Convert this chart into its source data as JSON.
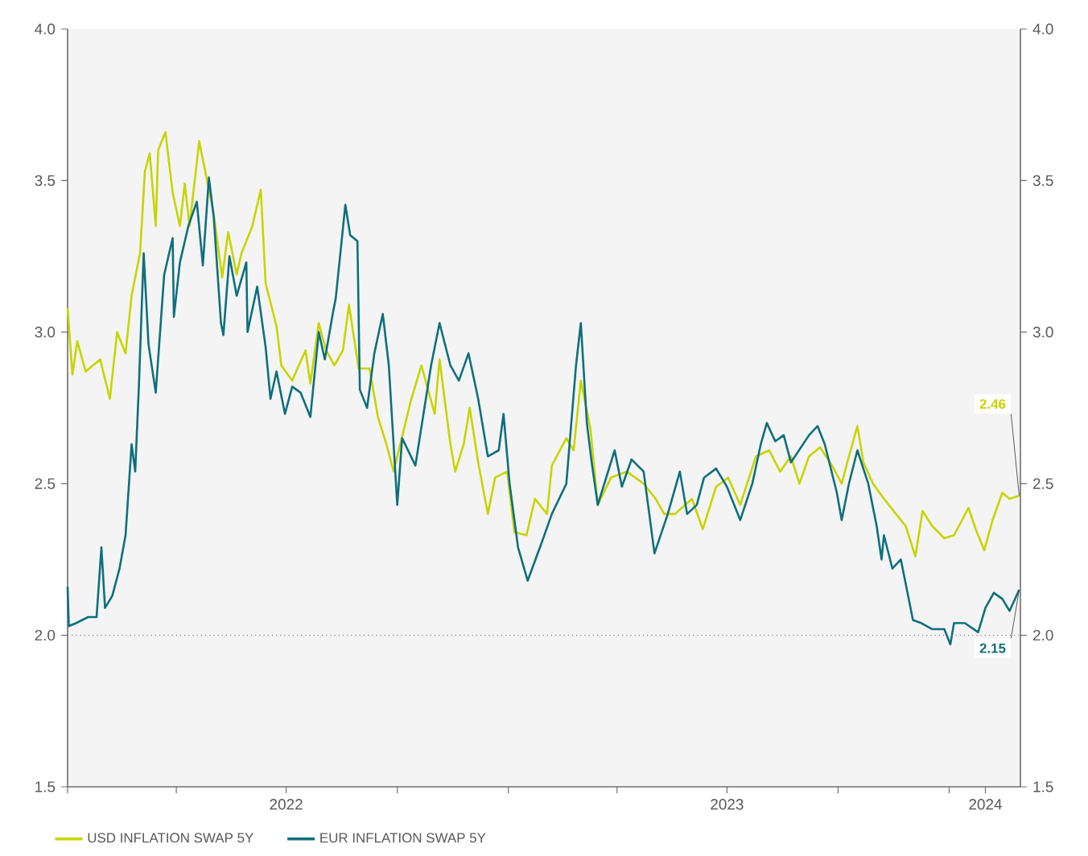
{
  "chart_data": {
    "type": "line",
    "xlim": [
      "2022-01-01",
      "2024-02-29"
    ],
    "xticks": [
      {
        "value": "2022-01-01",
        "label": null
      },
      {
        "value": "2022-04-01",
        "label": null
      },
      {
        "value": "2022-07-01",
        "label": "2022"
      },
      {
        "value": "2022-10-01",
        "label": null
      },
      {
        "value": "2023-01-01",
        "label": null
      },
      {
        "value": "2023-04-01",
        "label": null
      },
      {
        "value": "2023-07-01",
        "label": "2023"
      },
      {
        "value": "2023-10-01",
        "label": null
      },
      {
        "value": "2024-01-01",
        "label": null
      },
      {
        "value": "2024-01-31",
        "label": "2024"
      }
    ],
    "ylim": [
      1.5,
      4.0
    ],
    "yticks": [
      1.5,
      {
        "value": 2.0,
        "label": "2.0"
      },
      2.5,
      {
        "value": 3.0,
        "label": "3.0"
      },
      3.5,
      {
        "value": 4.0,
        "label": "4.0"
      }
    ],
    "y2lim": [
      1.5,
      4.0
    ],
    "y2ticks": [
      1.5,
      {
        "value": 2.0,
        "label": "2.0"
      },
      2.5,
      {
        "value": 3.0,
        "label": "3.0"
      },
      3.5,
      {
        "value": 4.0,
        "label": "4.0"
      }
    ],
    "legend": "bottom",
    "ref_lines": [
      {
        "axis": "y",
        "value": 2.0,
        "line_style": "dotted",
        "color": "#808080"
      }
    ],
    "annotations": [
      {
        "text": "2.46",
        "x": "2024-02-28",
        "y": 2.46
      },
      {
        "text": "2.15",
        "x": "2024-02-28",
        "y": 2.15
      }
    ],
    "series": [
      {
        "name": "USD INFLATION SWAP 5Y",
        "color": "#c8d400",
        "x": [
          "2022-01-01",
          "2022-01-05",
          "2022-01-09",
          "2022-01-16",
          "2022-01-28",
          "2022-02-05",
          "2022-02-11",
          "2022-02-18",
          "2022-02-23",
          "2022-03-02",
          "2022-03-06",
          "2022-03-10",
          "2022-03-15",
          "2022-03-17",
          "2022-03-23",
          "2022-03-29",
          "2022-04-04",
          "2022-04-08",
          "2022-04-12",
          "2022-04-20",
          "2022-04-26",
          "2022-05-02",
          "2022-05-09",
          "2022-05-14",
          "2022-05-21",
          "2022-05-25",
          "2022-06-03",
          "2022-06-10",
          "2022-06-14",
          "2022-06-23",
          "2022-06-27",
          "2022-07-06",
          "2022-07-17",
          "2022-07-21",
          "2022-07-28",
          "2022-08-03",
          "2022-08-10",
          "2022-08-17",
          "2022-08-22",
          "2022-08-30",
          "2022-09-08",
          "2022-09-15",
          "2022-09-22",
          "2022-09-28",
          "2022-10-12",
          "2022-10-21",
          "2022-11-01",
          "2022-11-05",
          "2022-11-14",
          "2022-11-18",
          "2022-11-25",
          "2022-11-30",
          "2022-12-07",
          "2022-12-15",
          "2022-12-21",
          "2022-12-31",
          "2023-01-06",
          "2023-01-16",
          "2023-01-23",
          "2023-02-02",
          "2023-02-06",
          "2023-02-18",
          "2023-02-24",
          "2023-03-02",
          "2023-03-10",
          "2023-03-16",
          "2023-03-27",
          "2023-04-09",
          "2023-04-23",
          "2023-05-03",
          "2023-05-10",
          "2023-05-19",
          "2023-06-02",
          "2023-06-11",
          "2023-06-22",
          "2023-07-02",
          "2023-07-12",
          "2023-07-25",
          "2023-08-05",
          "2023-08-14",
          "2023-08-23",
          "2023-08-30",
          "2023-09-07",
          "2023-09-16",
          "2023-09-26",
          "2023-10-04",
          "2023-10-10",
          "2023-10-17",
          "2023-10-22",
          "2023-10-30",
          "2023-11-08",
          "2023-11-18",
          "2023-11-26",
          "2023-12-04",
          "2023-12-10",
          "2023-12-18",
          "2023-12-28",
          "2024-01-05",
          "2024-01-17",
          "2024-01-23",
          "2024-01-30",
          "2024-02-06",
          "2024-02-14",
          "2024-02-20",
          "2024-02-28"
        ],
        "values": [
          3.08,
          2.86,
          2.97,
          2.87,
          2.91,
          2.78,
          3.0,
          2.93,
          3.12,
          3.26,
          3.53,
          3.59,
          3.35,
          3.6,
          3.66,
          3.46,
          3.35,
          3.49,
          3.35,
          3.63,
          3.51,
          3.39,
          3.18,
          3.33,
          3.19,
          3.26,
          3.35,
          3.47,
          3.16,
          3.02,
          2.89,
          2.84,
          2.94,
          2.83,
          3.03,
          2.94,
          2.89,
          2.94,
          3.09,
          2.88,
          2.88,
          2.72,
          2.63,
          2.54,
          2.77,
          2.89,
          2.73,
          2.91,
          2.63,
          2.54,
          2.63,
          2.75,
          2.57,
          2.4,
          2.52,
          2.54,
          2.34,
          2.33,
          2.45,
          2.4,
          2.56,
          2.65,
          2.61,
          2.84,
          2.68,
          2.43,
          2.52,
          2.54,
          2.5,
          2.45,
          2.4,
          2.4,
          2.45,
          2.35,
          2.49,
          2.52,
          2.43,
          2.59,
          2.61,
          2.54,
          2.59,
          2.5,
          2.59,
          2.62,
          2.56,
          2.5,
          2.59,
          2.69,
          2.57,
          2.5,
          2.45,
          2.4,
          2.36,
          2.26,
          2.41,
          2.36,
          2.32,
          2.33,
          2.42,
          2.35,
          2.28,
          2.38,
          2.47,
          2.45,
          2.46
        ]
      },
      {
        "name": "EUR INFLATION SWAP 5Y",
        "color": "#0e6f7e",
        "x": [
          "2022-01-01",
          "2022-01-02",
          "2022-01-08",
          "2022-01-18",
          "2022-01-25",
          "2022-01-29",
          "2022-02-01",
          "2022-02-07",
          "2022-02-13",
          "2022-02-18",
          "2022-02-23",
          "2022-02-26",
          "2022-03-01",
          "2022-03-05",
          "2022-03-09",
          "2022-03-15",
          "2022-03-22",
          "2022-03-29",
          "2022-03-30",
          "2022-04-04",
          "2022-04-11",
          "2022-04-18",
          "2022-04-23",
          "2022-04-28",
          "2022-05-02",
          "2022-05-08",
          "2022-05-10",
          "2022-05-15",
          "2022-05-21",
          "2022-05-29",
          "2022-05-30",
          "2022-06-07",
          "2022-06-14",
          "2022-06-18",
          "2022-06-23",
          "2022-06-30",
          "2022-07-06",
          "2022-07-13",
          "2022-07-21",
          "2022-07-28",
          "2022-08-02",
          "2022-08-09",
          "2022-08-11",
          "2022-08-19",
          "2022-08-23",
          "2022-08-29",
          "2022-08-31",
          "2022-09-06",
          "2022-09-12",
          "2022-09-19",
          "2022-09-24",
          "2022-10-01",
          "2022-10-05",
          "2022-10-16",
          "2022-10-29",
          "2022-11-05",
          "2022-11-14",
          "2022-11-21",
          "2022-11-29",
          "2022-12-07",
          "2022-12-15",
          "2022-12-24",
          "2022-12-28",
          "2023-01-02",
          "2023-01-09",
          "2023-01-17",
          "2023-01-29",
          "2023-02-06",
          "2023-02-18",
          "2023-02-26",
          "2023-03-02",
          "2023-03-07",
          "2023-03-11",
          "2023-03-16",
          "2023-03-30",
          "2023-04-05",
          "2023-04-13",
          "2023-04-23",
          "2023-05-02",
          "2023-05-13",
          "2023-05-23",
          "2023-05-29",
          "2023-06-06",
          "2023-06-12",
          "2023-06-22",
          "2023-07-01",
          "2023-07-12",
          "2023-07-22",
          "2023-07-29",
          "2023-08-03",
          "2023-08-10",
          "2023-08-17",
          "2023-08-23",
          "2023-09-07",
          "2023-09-14",
          "2023-09-20",
          "2023-09-30",
          "2023-10-04",
          "2023-10-10",
          "2023-10-17",
          "2023-10-26",
          "2023-11-02",
          "2023-11-06",
          "2023-11-08",
          "2023-11-15",
          "2023-11-22",
          "2023-11-28",
          "2023-12-02",
          "2023-12-09",
          "2023-12-18",
          "2023-12-28",
          "2024-01-02",
          "2024-01-05",
          "2024-01-14",
          "2024-01-25",
          "2024-01-31",
          "2024-02-07",
          "2024-02-14",
          "2024-02-20",
          "2024-02-28"
        ],
        "values": [
          2.16,
          2.03,
          2.04,
          2.06,
          2.06,
          2.29,
          2.09,
          2.13,
          2.22,
          2.33,
          2.63,
          2.54,
          2.82,
          3.26,
          2.96,
          2.8,
          3.19,
          3.31,
          3.05,
          3.23,
          3.35,
          3.43,
          3.22,
          3.51,
          3.38,
          3.03,
          2.99,
          3.25,
          3.12,
          3.23,
          3.0,
          3.15,
          2.95,
          2.78,
          2.87,
          2.73,
          2.82,
          2.8,
          2.72,
          3.0,
          2.91,
          3.07,
          3.11,
          3.42,
          3.32,
          3.3,
          2.81,
          2.75,
          2.93,
          3.06,
          2.89,
          2.43,
          2.65,
          2.56,
          2.89,
          3.03,
          2.89,
          2.84,
          2.93,
          2.78,
          2.59,
          2.61,
          2.73,
          2.5,
          2.29,
          2.18,
          2.31,
          2.4,
          2.5,
          2.89,
          3.03,
          2.7,
          2.57,
          2.43,
          2.61,
          2.49,
          2.58,
          2.54,
          2.27,
          2.4,
          2.54,
          2.4,
          2.43,
          2.52,
          2.55,
          2.49,
          2.38,
          2.5,
          2.63,
          2.7,
          2.64,
          2.66,
          2.57,
          2.66,
          2.69,
          2.63,
          2.47,
          2.38,
          2.5,
          2.61,
          2.5,
          2.36,
          2.25,
          2.33,
          2.22,
          2.25,
          2.13,
          2.05,
          2.04,
          2.02,
          2.02,
          1.97,
          2.04,
          2.04,
          2.01,
          2.09,
          2.14,
          2.12,
          2.08,
          2.15
        ]
      }
    ]
  }
}
